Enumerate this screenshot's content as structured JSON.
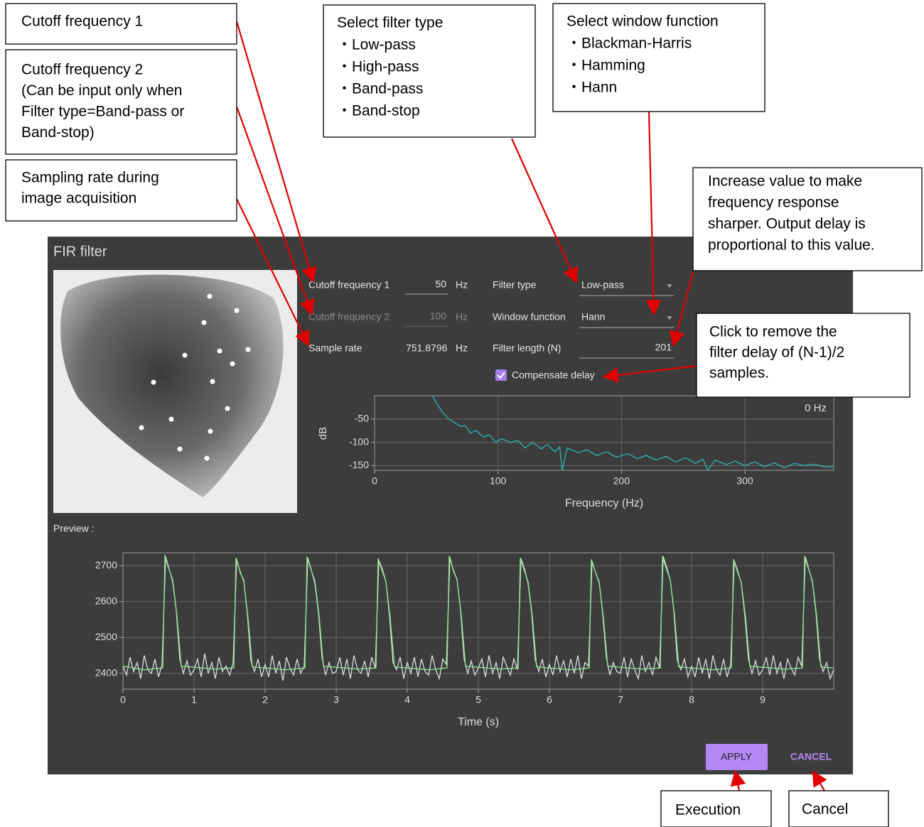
{
  "dialog": {
    "title": "FIR filter",
    "preview_label": "Preview :",
    "apply": "APPLY",
    "cancel": "CANCEL"
  },
  "form": {
    "cutoff1": {
      "label": "Cutoff frequency 1",
      "value": "50",
      "unit": "Hz"
    },
    "cutoff2": {
      "label": "Cutoff frequency 2",
      "value": "100",
      "unit": "Hz"
    },
    "sample_rate": {
      "label": "Sample rate",
      "value": "751.8796",
      "unit": "Hz"
    },
    "filter_type": {
      "label": "Filter type",
      "value": "Low-pass"
    },
    "window_function": {
      "label": "Window function",
      "value": "Hann"
    },
    "filter_length": {
      "label": "Filter length (N)",
      "value": "201"
    },
    "compensate_delay": {
      "label": "Compensate delay",
      "checked": true
    }
  },
  "annotations": [
    {
      "lines": [
        "Cutoff frequency 1"
      ]
    },
    {
      "lines": [
        "Cutoff frequency 2",
        "(Can be input only when",
        "Filter type=Band-pass or",
        "Band-stop)"
      ]
    },
    {
      "lines": [
        "Sampling rate during",
        "image acquisition"
      ]
    },
    {
      "lines": [
        "Select filter type",
        "・Low-pass",
        "・High-pass",
        "・Band-pass",
        "・Band-stop"
      ]
    },
    {
      "lines": [
        "Select window function",
        "・Blackman-Harris",
        "・Hamming",
        "・Hann"
      ]
    },
    {
      "lines": [
        "Increase value to make",
        "frequency response",
        "sharper. Output delay is",
        "proportional to this value."
      ]
    },
    {
      "lines": [
        "Click to remove the",
        "filter delay of (N-1)/2",
        "samples."
      ]
    },
    {
      "lines": [
        "Execution"
      ]
    },
    {
      "lines": [
        "Cancel"
      ]
    }
  ],
  "chart_data": [
    {
      "type": "line",
      "x_label": "Frequency (Hz)",
      "y_label": "dB",
      "cursor_label": "0 Hz",
      "xlim": [
        0,
        372
      ],
      "xticks": [
        0,
        100,
        200,
        300
      ],
      "ylim": [
        -160,
        0
      ],
      "yticks": [
        -50,
        -100,
        -150
      ],
      "grid": true,
      "x": [
        47,
        50,
        55,
        60,
        65,
        70,
        73,
        78,
        82,
        88,
        93,
        98,
        103,
        110,
        116,
        122,
        128,
        135,
        140,
        146,
        150,
        152,
        156,
        165,
        172,
        180,
        188,
        196,
        205,
        213,
        220,
        228,
        236,
        244,
        252,
        260,
        266,
        270,
        276,
        285,
        292,
        300,
        308,
        316,
        324,
        332,
        340,
        348,
        356,
        364,
        372
      ],
      "series": [
        {
          "color": "#2bb5b5",
          "values": [
            0,
            -15,
            -35,
            -50,
            -58,
            -66,
            -64,
            -80,
            -74,
            -88,
            -84,
            -100,
            -92,
            -100,
            -96,
            -112,
            -100,
            -114,
            -104,
            -120,
            -110,
            -160,
            -112,
            -122,
            -116,
            -128,
            -120,
            -132,
            -124,
            -135,
            -128,
            -138,
            -130,
            -142,
            -133,
            -145,
            -136,
            -160,
            -138,
            -148,
            -140,
            -150,
            -142,
            -152,
            -144,
            -155,
            -145,
            -150,
            -147,
            -152,
            -153
          ]
        }
      ]
    },
    {
      "type": "line",
      "x_label": "Time (s)",
      "xlim": [
        0,
        10
      ],
      "xticks": [
        0,
        1,
        2,
        3,
        4,
        5,
        6,
        7,
        8,
        9
      ],
      "ylim": [
        2356,
        2736
      ],
      "yticks": [
        2400,
        2500,
        2600,
        2700
      ],
      "grid": true,
      "series": [
        {
          "color": "#dcdcdc",
          "x": [
            0,
            0.05,
            0.1,
            0.15,
            0.2,
            0.25,
            0.3,
            0.35,
            0.4,
            0.45,
            0.5,
            0.55,
            0.6,
            0.65,
            0.7,
            0.75,
            0.8,
            0.85,
            0.9,
            0.95,
            1,
            1.05,
            1.1,
            1.15,
            1.2,
            1.25,
            1.3,
            1.35,
            1.4,
            1.45,
            1.5,
            1.55,
            1.6,
            1.65,
            1.7,
            1.75,
            1.8,
            1.85,
            1.9,
            1.95,
            2,
            2.05,
            2.1,
            2.15,
            2.2,
            2.25,
            2.3,
            2.35,
            2.4,
            2.45,
            2.5,
            2.55,
            2.6,
            2.65,
            2.7,
            2.75,
            2.8,
            2.85,
            2.9,
            2.95,
            3,
            3.05,
            3.1,
            3.15,
            3.2,
            3.25,
            3.3,
            3.35,
            3.4,
            3.45,
            3.5,
            3.55,
            3.6,
            3.65,
            3.7,
            3.75,
            3.8,
            3.85,
            3.9,
            3.95,
            4,
            4.05,
            4.1,
            4.15,
            4.2,
            4.25,
            4.3,
            4.35,
            4.4,
            4.45,
            4.5,
            4.55,
            4.6,
            4.65,
            4.7,
            4.75,
            4.8,
            4.85,
            4.9,
            4.95,
            5,
            5.05,
            5.1,
            5.15,
            5.2,
            5.25,
            5.3,
            5.35,
            5.4,
            5.45,
            5.5,
            5.55,
            5.6,
            5.65,
            5.7,
            5.75,
            5.8,
            5.85,
            5.9,
            5.95,
            6,
            6.05,
            6.1,
            6.15,
            6.2,
            6.25,
            6.3,
            6.35,
            6.4,
            6.45,
            6.5,
            6.55,
            6.6,
            6.65,
            6.7,
            6.75,
            6.8,
            6.85,
            6.9,
            6.95,
            7,
            7.05,
            7.1,
            7.15,
            7.2,
            7.25,
            7.3,
            7.35,
            7.4,
            7.45,
            7.5,
            7.55,
            7.6,
            7.65,
            7.7,
            7.75,
            7.8,
            7.85,
            7.9,
            7.95,
            8,
            8.05,
            8.1,
            8.15,
            8.2,
            8.25,
            8.3,
            8.35,
            8.4,
            8.45,
            8.5,
            8.55,
            8.6,
            8.65,
            8.7,
            8.75,
            8.8,
            8.85,
            8.9,
            8.95,
            9,
            9.05,
            9.1,
            9.15,
            9.2,
            9.25,
            9.3,
            9.35,
            9.4,
            9.45,
            9.5,
            9.55,
            9.6,
            9.65,
            9.7,
            9.75,
            9.8,
            9.85,
            9.9,
            9.95,
            10
          ],
          "values": [
            2420,
            2395,
            2445,
            2405,
            2430,
            2385,
            2450,
            2410,
            2400,
            2440,
            2390,
            2425,
            2725,
            2690,
            2655,
            2575,
            2440,
            2400,
            2435,
            2395,
            2410,
            2440,
            2390,
            2455,
            2400,
            2430,
            2385,
            2445,
            2405,
            2420,
            2395,
            2430,
            2718,
            2680,
            2660,
            2565,
            2435,
            2405,
            2440,
            2390,
            2425,
            2390,
            2450,
            2400,
            2435,
            2380,
            2445,
            2415,
            2395,
            2440,
            2400,
            2420,
            2722,
            2688,
            2650,
            2570,
            2445,
            2395,
            2430,
            2400,
            2405,
            2445,
            2395,
            2440,
            2385,
            2450,
            2410,
            2400,
            2435,
            2390,
            2445,
            2415,
            2715,
            2690,
            2655,
            2560,
            2430,
            2410,
            2445,
            2385,
            2430,
            2400,
            2445,
            2390,
            2440,
            2405,
            2395,
            2450,
            2410,
            2385,
            2440,
            2425,
            2724,
            2685,
            2662,
            2575,
            2440,
            2400,
            2435,
            2395,
            2415,
            2440,
            2390,
            2450,
            2400,
            2430,
            2385,
            2445,
            2420,
            2395,
            2440,
            2410,
            2720,
            2690,
            2650,
            2568,
            2438,
            2405,
            2440,
            2390,
            2425,
            2395,
            2450,
            2405,
            2435,
            2390,
            2440,
            2400,
            2450,
            2385,
            2430,
            2420,
            2712,
            2680,
            2655,
            2565,
            2445,
            2395,
            2430,
            2405,
            2400,
            2445,
            2390,
            2440,
            2410,
            2385,
            2450,
            2405,
            2430,
            2395,
            2445,
            2415,
            2726,
            2695,
            2660,
            2575,
            2435,
            2410,
            2440,
            2390,
            2420,
            2390,
            2445,
            2400,
            2440,
            2385,
            2450,
            2410,
            2395,
            2440,
            2390,
            2425,
            2714,
            2685,
            2650,
            2560,
            2440,
            2400,
            2435,
            2395,
            2410,
            2445,
            2395,
            2450,
            2400,
            2430,
            2385,
            2440,
            2415,
            2395,
            2445,
            2420,
            2725,
            2690,
            2655,
            2570,
            2440,
            2405,
            2430,
            2385,
            2410
          ]
        },
        {
          "color": "#8ee28e",
          "x": [
            0,
            0.3,
            0.56,
            0.59,
            0.63,
            0.7,
            0.76,
            0.82,
            1.3,
            1.56,
            1.59,
            1.63,
            1.7,
            1.76,
            1.82,
            2.3,
            2.56,
            2.59,
            2.63,
            2.7,
            2.76,
            2.82,
            3.3,
            3.56,
            3.59,
            3.63,
            3.7,
            3.76,
            3.82,
            4.3,
            4.56,
            4.59,
            4.63,
            4.7,
            4.76,
            4.82,
            5.3,
            5.56,
            5.59,
            5.63,
            5.7,
            5.76,
            5.82,
            6.3,
            6.56,
            6.59,
            6.63,
            6.7,
            6.76,
            6.82,
            7.3,
            7.56,
            7.59,
            7.63,
            7.7,
            7.76,
            7.82,
            8.3,
            8.56,
            8.59,
            8.63,
            8.7,
            8.76,
            8.82,
            9.3,
            9.56,
            9.59,
            9.63,
            9.7,
            9.76,
            9.82,
            10
          ],
          "values": [
            2420,
            2410,
            2415,
            2730,
            2700,
            2660,
            2560,
            2420,
            2412,
            2415,
            2722,
            2695,
            2655,
            2555,
            2418,
            2410,
            2415,
            2725,
            2698,
            2658,
            2560,
            2420,
            2412,
            2415,
            2720,
            2695,
            2655,
            2555,
            2418,
            2410,
            2415,
            2728,
            2700,
            2660,
            2562,
            2420,
            2412,
            2415,
            2722,
            2696,
            2655,
            2558,
            2418,
            2410,
            2415,
            2718,
            2692,
            2652,
            2555,
            2420,
            2412,
            2415,
            2727,
            2700,
            2660,
            2562,
            2418,
            2410,
            2415,
            2718,
            2692,
            2652,
            2555,
            2420,
            2412,
            2415,
            2727,
            2700,
            2658,
            2560,
            2418,
            2415
          ]
        }
      ]
    }
  ]
}
